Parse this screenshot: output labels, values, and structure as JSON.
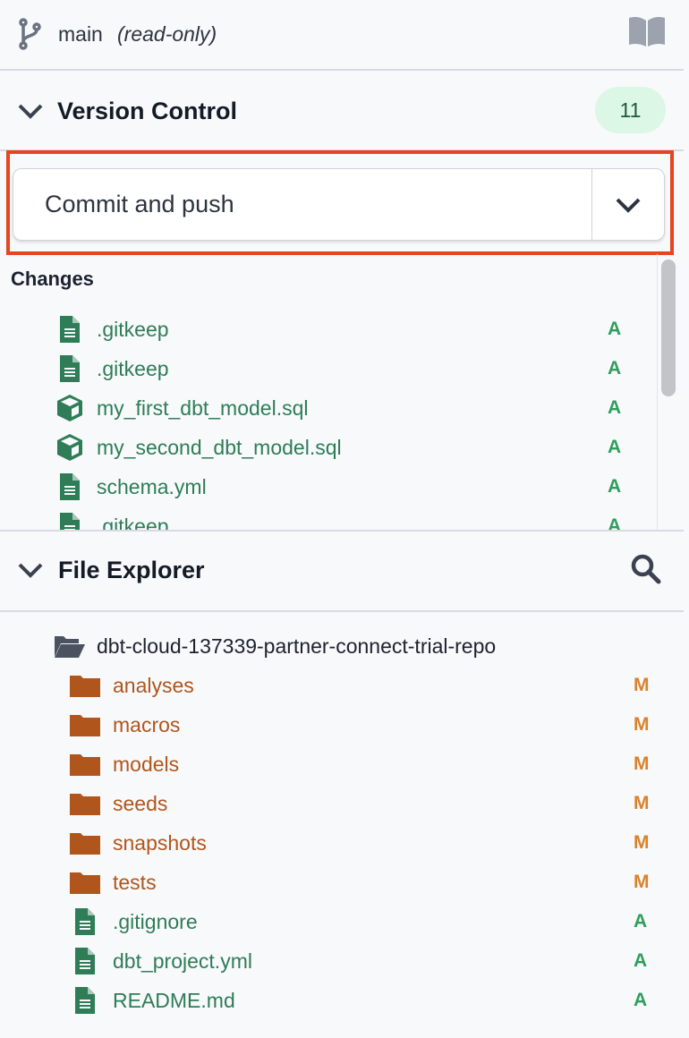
{
  "branch": {
    "name": "main",
    "mode": "(read-only)"
  },
  "version_control": {
    "title": "Version Control",
    "count": "11",
    "action_label": "Commit and push",
    "changes_label": "Changes",
    "changes": [
      {
        "name": ".gitkeep",
        "icon": "file-icon",
        "status": "A"
      },
      {
        "name": ".gitkeep",
        "icon": "file-icon",
        "status": "A"
      },
      {
        "name": "my_first_dbt_model.sql",
        "icon": "model-cube-icon",
        "status": "A"
      },
      {
        "name": "my_second_dbt_model.sql",
        "icon": "model-cube-icon",
        "status": "A"
      },
      {
        "name": "schema.yml",
        "icon": "file-icon",
        "status": "A"
      },
      {
        "name": ".gitkeep",
        "icon": "file-icon",
        "status": "A"
      }
    ]
  },
  "file_explorer": {
    "title": "File Explorer",
    "root": "dbt-cloud-137339-partner-connect-trial-repo",
    "items": [
      {
        "name": "analyses",
        "type": "folder",
        "status": "M"
      },
      {
        "name": "macros",
        "type": "folder",
        "status": "M"
      },
      {
        "name": "models",
        "type": "folder",
        "status": "M"
      },
      {
        "name": "seeds",
        "type": "folder",
        "status": "M"
      },
      {
        "name": "snapshots",
        "type": "folder",
        "status": "M"
      },
      {
        "name": "tests",
        "type": "folder",
        "status": "M"
      },
      {
        "name": ".gitignore",
        "type": "file",
        "status": "A"
      },
      {
        "name": "dbt_project.yml",
        "type": "file",
        "status": "A"
      },
      {
        "name": "README.md",
        "type": "file",
        "status": "A"
      }
    ]
  },
  "colors": {
    "added": "#2f9e5b",
    "added_text": "#2e7d57",
    "modified": "#d9822b",
    "folder": "#b0561c",
    "highlight": "#e8441f",
    "badge_bg": "#dcf7e6"
  }
}
